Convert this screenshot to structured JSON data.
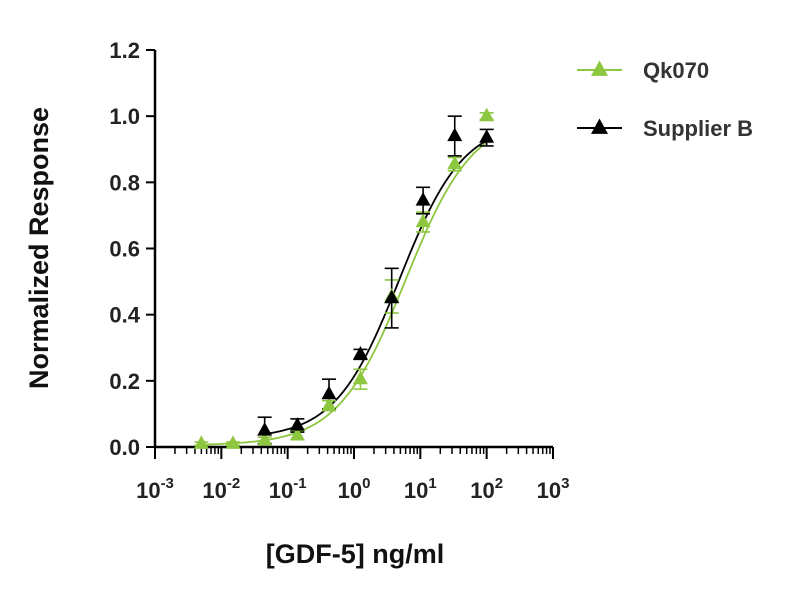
{
  "chart_data": {
    "type": "scatter",
    "title": "",
    "xlabel": "[GDF-5] ng/ml",
    "ylabel": "Normalized Response",
    "xscale": "log",
    "xlim": [
      0.001,
      1000
    ],
    "ylim": [
      0,
      1.2
    ],
    "x_ticks": [
      {
        "base": "10",
        "exp": "-3"
      },
      {
        "base": "10",
        "exp": "-2"
      },
      {
        "base": "10",
        "exp": "-1"
      },
      {
        "base": "10",
        "exp": "0"
      },
      {
        "base": "10",
        "exp": "1"
      },
      {
        "base": "10",
        "exp": "2"
      },
      {
        "base": "10",
        "exp": "3"
      }
    ],
    "y_ticks": [
      "0.0",
      "0.2",
      "0.4",
      "0.6",
      "0.8",
      "1.0",
      "1.2"
    ],
    "grid": false,
    "legend": "top-right",
    "series": [
      {
        "name": "Qk070",
        "color": "#8dc63f",
        "marker": "triangle",
        "x": [
          0.005,
          0.015,
          0.045,
          0.14,
          0.42,
          1.25,
          3.7,
          11,
          33,
          100
        ],
        "y": [
          0.01,
          0.01,
          0.02,
          0.035,
          0.125,
          0.205,
          0.455,
          0.68,
          0.855,
          1.0
        ],
        "err": [
          0.005,
          0.005,
          0.01,
          0.012,
          0.015,
          0.03,
          0.05,
          0.03,
          0.02,
          0.01
        ],
        "fit": {
          "bottom": 0.005,
          "top": 1.005,
          "ec50": 6.0,
          "hill": 0.85
        }
      },
      {
        "name": "Supplier B",
        "color": "#000000",
        "marker": "triangle",
        "x": [
          0.045,
          0.14,
          0.42,
          1.25,
          3.7,
          11,
          33,
          100
        ],
        "y": [
          0.05,
          0.065,
          0.16,
          0.28,
          0.45,
          0.745,
          0.94,
          0.935
        ],
        "err": [
          0.04,
          0.02,
          0.045,
          0.015,
          0.09,
          0.04,
          0.06,
          0.025
        ],
        "fit": {
          "bottom": 0.025,
          "top": 0.985,
          "ec50": 4.8,
          "hill": 0.9
        }
      }
    ]
  }
}
